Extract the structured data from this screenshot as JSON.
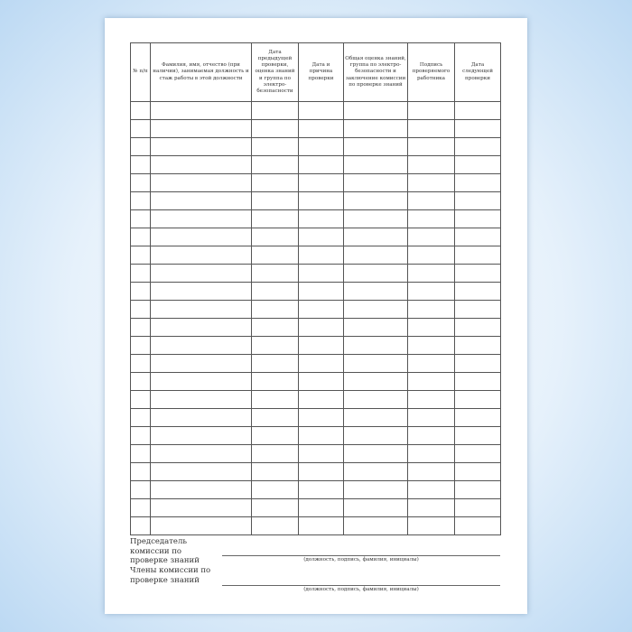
{
  "table": {
    "headers": [
      "№ п/п",
      "Фамилия, имя, отчество (при наличии), занимаемая должность и стаж работы в этой должности",
      "Дата предыдущей проверки, оценка знаний и группа по электро-безопасности",
      "Дата и причина проверки",
      "Общая оценка знаний, группа по электро-безопасности и заключение комиссии по проверке знаний",
      "Подпись проверяемого работника",
      "Дата следующей проверки"
    ],
    "empty_rows": 24
  },
  "footer": {
    "chairman_label": "Председатель комиссии по проверке знаний",
    "chairman_caption": "(должность, подпись, фамилия, инициалы)",
    "members_label": "Члены комиссии по проверке знаний",
    "members_caption": "(должность, подпись, фамилия, инициалы)"
  }
}
